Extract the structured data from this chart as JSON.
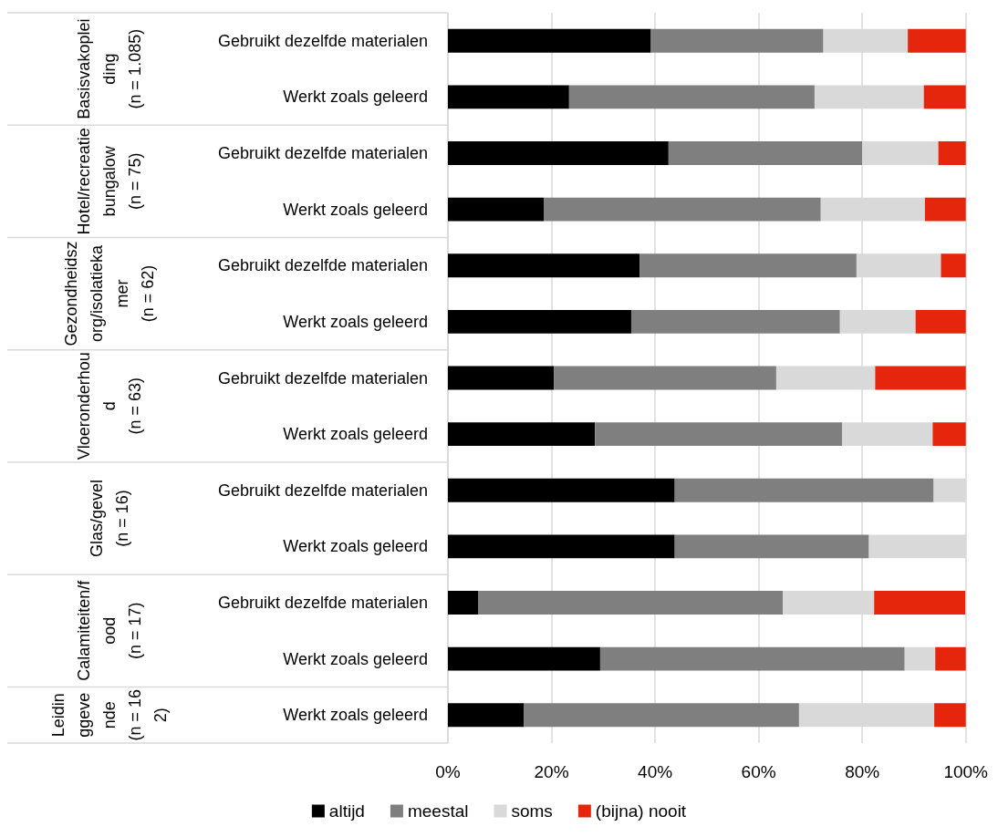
{
  "chart_data": {
    "type": "bar",
    "orientation": "horizontal",
    "stacked": true,
    "categories": [
      "Gebruikt dezelfde materialen",
      "Werkt zoals geleerd",
      "Gebruikt dezelfde materialen",
      "Werkt zoals geleerd",
      "Gebruikt dezelfde materialen",
      "Werkt zoals geleerd",
      "Gebruikt dezelfde materialen",
      "Werkt zoals geleerd",
      "Gebruikt dezelfde materialen",
      "Werkt zoals geleerd",
      "Gebruikt dezelfde materialen",
      "Werkt zoals geleerd",
      "Werkt zoals geleerd"
    ],
    "series": [
      {
        "name": "altijd",
        "color": "#000000",
        "values": [
          39.2,
          23.4,
          42.6,
          18.5,
          37.0,
          35.4,
          20.5,
          28.4,
          43.8,
          43.8,
          5.9,
          29.4,
          14.7
        ]
      },
      {
        "name": "meestal",
        "color": "#7f7f7f",
        "values": [
          33.3,
          47.4,
          37.4,
          53.5,
          41.9,
          40.3,
          42.9,
          47.7,
          50.0,
          37.5,
          58.8,
          58.8,
          53.1
        ]
      },
      {
        "name": "soms",
        "color": "#d9d9d9",
        "values": [
          16.3,
          21.1,
          14.7,
          20.1,
          16.3,
          14.6,
          19.1,
          17.5,
          6.2,
          18.7,
          17.6,
          5.9,
          26.1
        ]
      },
      {
        "name": "(bijna) nooit",
        "color": "#e5260c",
        "values": [
          11.2,
          8.1,
          5.3,
          7.9,
          4.8,
          9.7,
          17.5,
          6.4,
          0,
          0,
          17.6,
          5.9,
          6.1
        ]
      }
    ],
    "annotations": [
      "Basisvakopleiding\n(n = 1.085)",
      "Hotel/recreatiebungalow\n(n = 75)",
      "Gezondheidszorg/isolatiekamer\n(n = 62)",
      "Vloeronderhoud\n(n = 63)",
      "Glas/gevel\n(n = 16)",
      "Calamiteiten/food\n(n = 17)",
      "Leidinggevende\n(n = 162)"
    ],
    "xlim": [
      0,
      100
    ],
    "xticks": [
      {
        "value": 0,
        "label": "0%"
      },
      {
        "value": 20,
        "label": "20%"
      },
      {
        "value": 40,
        "label": "40%"
      },
      {
        "value": 60,
        "label": "60%"
      },
      {
        "value": 80,
        "label": "80%"
      },
      {
        "value": 100,
        "label": "100%"
      }
    ],
    "grid": "x",
    "legend": "bottom"
  }
}
